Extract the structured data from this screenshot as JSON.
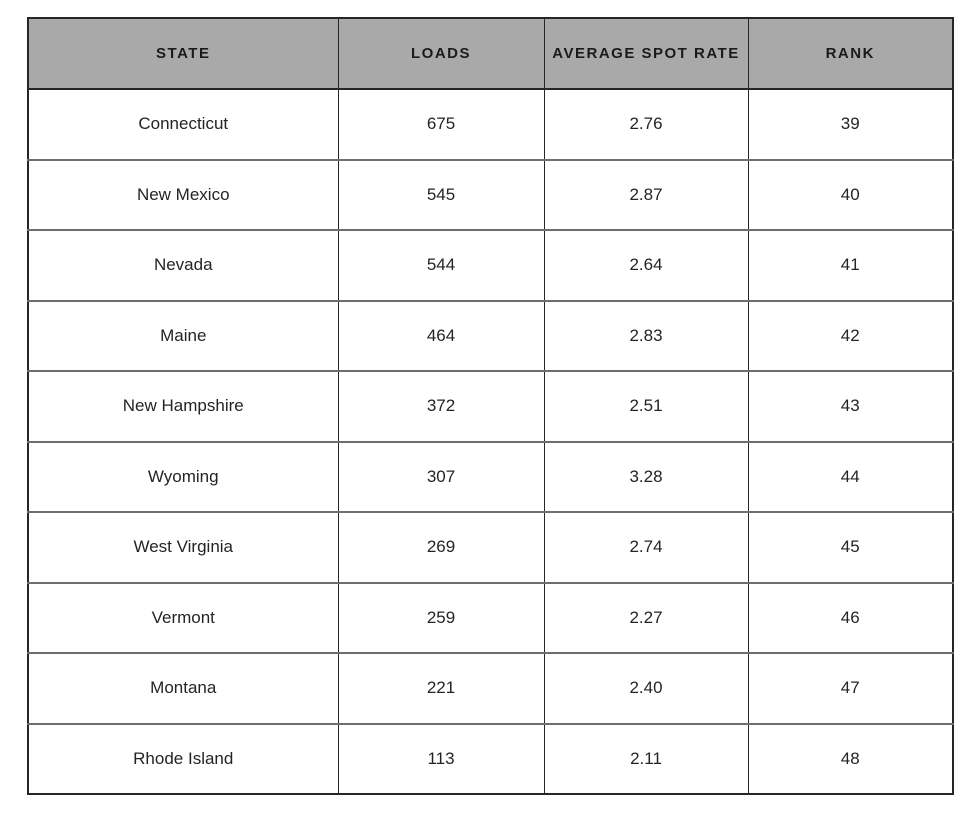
{
  "colors": {
    "page_bg": "#ffffff",
    "header_bg": "#a9a9a9",
    "header_text": "#1b1b1b",
    "body_text": "#242424",
    "outer_border": "#262626",
    "column_border": "#262626",
    "row_border": "#6e6e6e"
  },
  "chart_data": {
    "type": "table",
    "columns": [
      "STATE",
      "LOADS",
      "AVERAGE SPOT RATE",
      "RANK"
    ],
    "rows": [
      [
        "Connecticut",
        "675",
        "2.76",
        "39"
      ],
      [
        "New Mexico",
        "545",
        "2.87",
        "40"
      ],
      [
        "Nevada",
        "544",
        "2.64",
        "41"
      ],
      [
        "Maine",
        "464",
        "2.83",
        "42"
      ],
      [
        "New Hampshire",
        "372",
        "2.51",
        "43"
      ],
      [
        "Wyoming",
        "307",
        "3.28",
        "44"
      ],
      [
        "West Virginia",
        "269",
        "2.74",
        "45"
      ],
      [
        "Vermont",
        "259",
        "2.27",
        "46"
      ],
      [
        "Montana",
        "221",
        "2.40",
        "47"
      ],
      [
        "Rhode Island",
        "113",
        "2.11",
        "48"
      ]
    ]
  }
}
